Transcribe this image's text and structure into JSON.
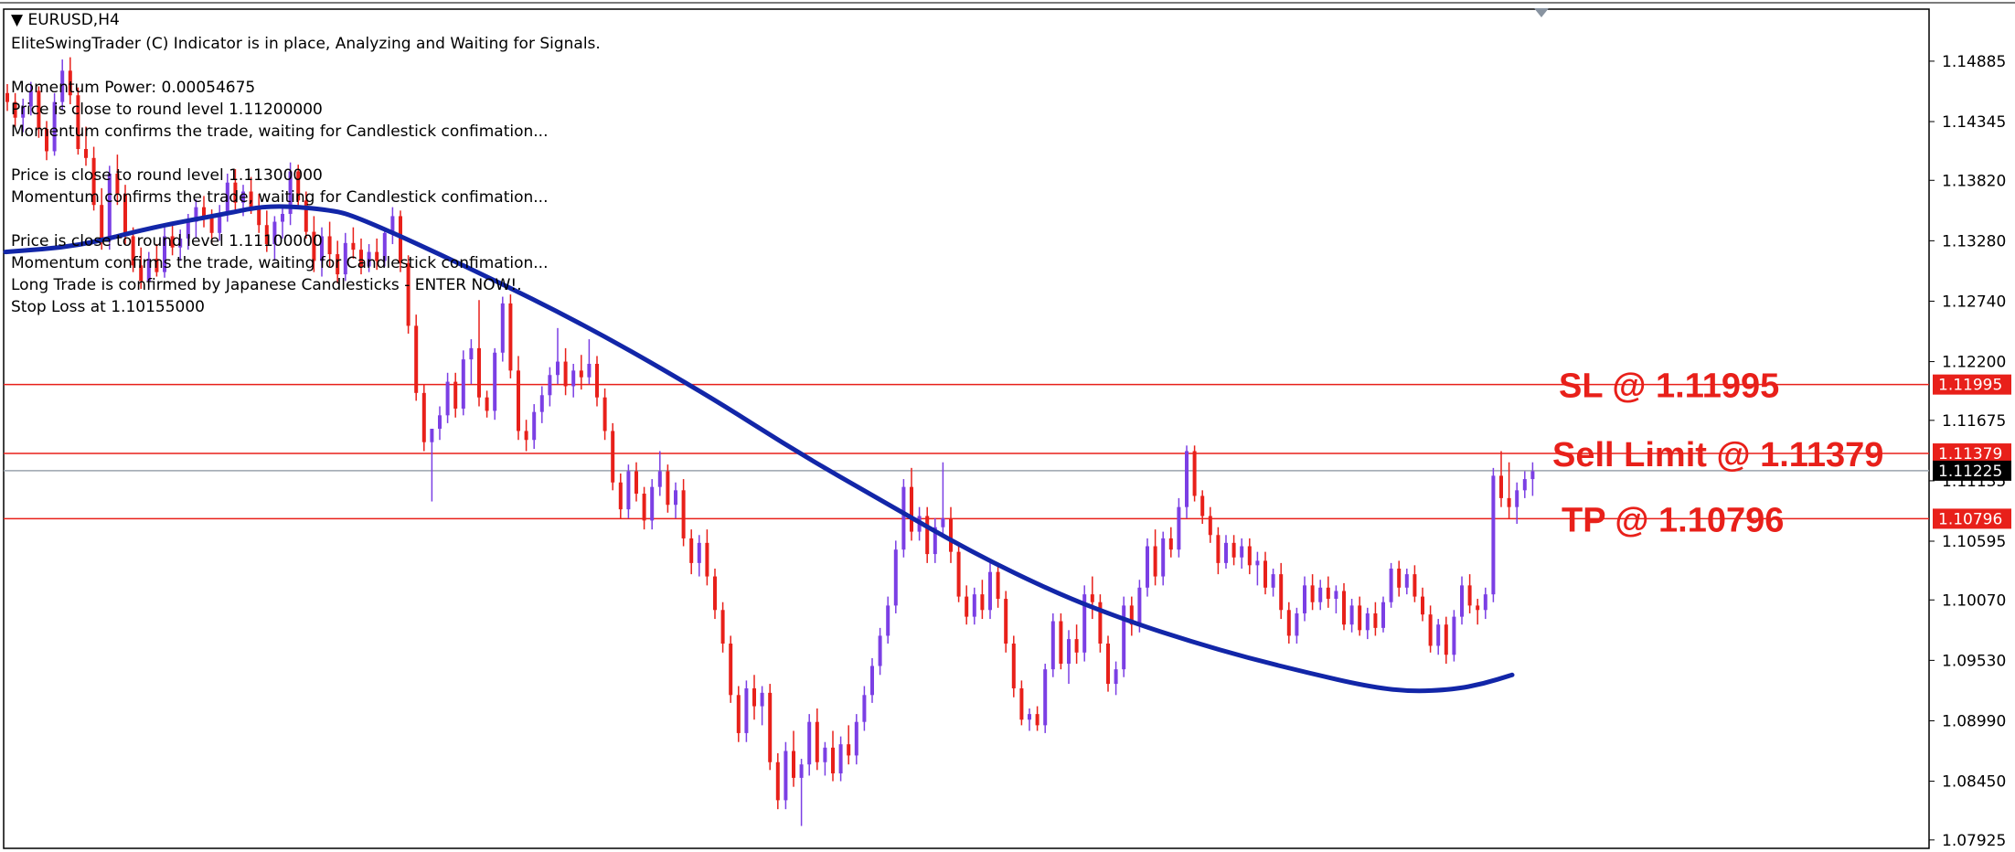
{
  "window": {
    "symbol_label": "EURUSD,H4"
  },
  "info_panel": {
    "lines": [
      "EliteSwingTrader (C) Indicator is in place, Analyzing and Waiting for Signals.",
      "",
      "Momentum Power: 0.00054675",
      "Price is close to round level 1.11200000",
      "Momentum confirms the trade, waiting for Candlestick confimation...",
      "",
      "Price is close to round level 1.11300000",
      "Momentum confirms the trade, waiting for Candlestick confimation...",
      "",
      "Price is close to round level 1.11100000",
      "Momentum confirms the trade, waiting for Candlestick confimation...",
      "Long Trade is confirmed by Japanese Candlesticks - ENTER NOW!.",
      "Stop Loss at 1.10155000"
    ]
  },
  "colors": {
    "bull": "#7B3FE4",
    "bear": "#E8201A",
    "ma": "#1226A8",
    "level_line": "#E8201A",
    "price_line": "#9AA3AD",
    "annotation": "#E8201A",
    "price_tag_bg": "#E8201A",
    "current_tag_bg": "#000000"
  },
  "chart_data": {
    "type": "candlestick",
    "symbol": "EURUSD",
    "timeframe": "H4",
    "ylim": [
      1.0785,
      1.1535
    ],
    "y_ticks": [
      "1.14885",
      "1.14345",
      "1.13820",
      "1.13280",
      "1.12740",
      "1.12200",
      "1.11675",
      "1.11135",
      "1.10595",
      "1.10070",
      "1.09530",
      "1.08990",
      "1.08450",
      "1.07925"
    ],
    "levels": [
      {
        "name": "SL",
        "price": 1.11995,
        "tag": "1.11995",
        "annotation": "SL @ 1.11995"
      },
      {
        "name": "Sell Limit",
        "price": 1.11379,
        "tag": "1.11379",
        "annotation": "Sell Limit @ 1.11379"
      },
      {
        "name": "TP",
        "price": 1.10796,
        "tag": "1.10796",
        "annotation": "TP @ 1.10796"
      }
    ],
    "current_price": {
      "price": 1.11225,
      "tag": "1.11225"
    },
    "candles": [
      [
        1.146,
        1.1468,
        1.1444,
        1.1452
      ],
      [
        1.1452,
        1.146,
        1.143,
        1.1438
      ],
      [
        1.1438,
        1.1455,
        1.1425,
        1.1448
      ],
      [
        1.1448,
        1.147,
        1.144,
        1.1462
      ],
      [
        1.1462,
        1.1466,
        1.142,
        1.1428
      ],
      [
        1.1428,
        1.1435,
        1.14,
        1.1408
      ],
      [
        1.1408,
        1.146,
        1.1404,
        1.1452
      ],
      [
        1.1452,
        1.149,
        1.1445,
        1.148
      ],
      [
        1.148,
        1.1492,
        1.145,
        1.1458
      ],
      [
        1.1458,
        1.1465,
        1.1405,
        1.141
      ],
      [
        1.141,
        1.143,
        1.1395,
        1.1402
      ],
      [
        1.1402,
        1.1412,
        1.1355,
        1.136
      ],
      [
        1.136,
        1.1375,
        1.132,
        1.1328
      ],
      [
        1.1328,
        1.1395,
        1.132,
        1.1388
      ],
      [
        1.1388,
        1.1405,
        1.136,
        1.137
      ],
      [
        1.137,
        1.1378,
        1.1325,
        1.1332
      ],
      [
        1.1332,
        1.134,
        1.13,
        1.1306
      ],
      [
        1.1306,
        1.1322,
        1.1285,
        1.1292
      ],
      [
        1.1292,
        1.1318,
        1.1286,
        1.1312
      ],
      [
        1.1312,
        1.1325,
        1.1296,
        1.13
      ],
      [
        1.13,
        1.134,
        1.1295,
        1.1332
      ],
      [
        1.1332,
        1.1345,
        1.1315,
        1.1322
      ],
      [
        1.1322,
        1.1338,
        1.131,
        1.133
      ],
      [
        1.133,
        1.1352,
        1.132,
        1.1345
      ],
      [
        1.1345,
        1.1365,
        1.133,
        1.1358
      ],
      [
        1.1358,
        1.1368,
        1.134,
        1.135
      ],
      [
        1.135,
        1.1356,
        1.1325,
        1.1335
      ],
      [
        1.1335,
        1.136,
        1.1328,
        1.1352
      ],
      [
        1.1352,
        1.1388,
        1.1345,
        1.138
      ],
      [
        1.138,
        1.1392,
        1.1355,
        1.1362
      ],
      [
        1.1362,
        1.1378,
        1.135,
        1.1372
      ],
      [
        1.1372,
        1.1385,
        1.1352,
        1.1358
      ],
      [
        1.1358,
        1.137,
        1.1335,
        1.1342
      ],
      [
        1.1342,
        1.1355,
        1.1318,
        1.1325
      ],
      [
        1.1325,
        1.135,
        1.131,
        1.1345
      ],
      [
        1.1345,
        1.136,
        1.133,
        1.1352
      ],
      [
        1.1352,
        1.1398,
        1.1342,
        1.139
      ],
      [
        1.139,
        1.1396,
        1.1358,
        1.1364
      ],
      [
        1.1364,
        1.1372,
        1.133,
        1.1336
      ],
      [
        1.1336,
        1.135,
        1.13,
        1.131
      ],
      [
        1.131,
        1.134,
        1.1296,
        1.1332
      ],
      [
        1.1332,
        1.1345,
        1.1305,
        1.1316
      ],
      [
        1.1316,
        1.1328,
        1.129,
        1.1298
      ],
      [
        1.1298,
        1.1335,
        1.1292,
        1.1326
      ],
      [
        1.1326,
        1.134,
        1.1312,
        1.132
      ],
      [
        1.132,
        1.133,
        1.1298,
        1.1305
      ],
      [
        1.1305,
        1.1325,
        1.13,
        1.1318
      ],
      [
        1.1318,
        1.133,
        1.1302,
        1.131
      ],
      [
        1.131,
        1.134,
        1.1305,
        1.1335
      ],
      [
        1.1335,
        1.1358,
        1.1325,
        1.135
      ],
      [
        1.135,
        1.1355,
        1.13,
        1.1308
      ],
      [
        1.1308,
        1.1315,
        1.1245,
        1.1252
      ],
      [
        1.1252,
        1.1262,
        1.1185,
        1.1192
      ],
      [
        1.1192,
        1.12,
        1.114,
        1.1148
      ],
      [
        1.1148,
        1.1155,
        1.1095,
        1.116
      ],
      [
        1.116,
        1.118,
        1.115,
        1.1172
      ],
      [
        1.1172,
        1.121,
        1.1165,
        1.1202
      ],
      [
        1.1202,
        1.121,
        1.117,
        1.1178
      ],
      [
        1.1178,
        1.123,
        1.1172,
        1.1222
      ],
      [
        1.1222,
        1.124,
        1.12,
        1.1232
      ],
      [
        1.1232,
        1.1275,
        1.118,
        1.1188
      ],
      [
        1.1188,
        1.1194,
        1.117,
        1.1176
      ],
      [
        1.1176,
        1.1232,
        1.1168,
        1.1228
      ],
      [
        1.1228,
        1.1278,
        1.122,
        1.1272
      ],
      [
        1.1272,
        1.128,
        1.1205,
        1.1212
      ],
      [
        1.1212,
        1.1225,
        1.115,
        1.1158
      ],
      [
        1.1158,
        1.1168,
        1.114,
        1.115
      ],
      [
        1.115,
        1.1182,
        1.1142,
        1.1175
      ],
      [
        1.1175,
        1.1198,
        1.1165,
        1.119
      ],
      [
        1.119,
        1.1215,
        1.118,
        1.1208
      ],
      [
        1.1208,
        1.125,
        1.12,
        1.122
      ],
      [
        1.122,
        1.1232,
        1.119,
        1.1198
      ],
      [
        1.1198,
        1.1218,
        1.1188,
        1.1212
      ],
      [
        1.1212,
        1.1226,
        1.1195,
        1.1206
      ],
      [
        1.1206,
        1.124,
        1.12,
        1.1218
      ],
      [
        1.1218,
        1.1225,
        1.118,
        1.1188
      ],
      [
        1.1188,
        1.1196,
        1.115,
        1.1158
      ],
      [
        1.1158,
        1.1165,
        1.1105,
        1.1112
      ],
      [
        1.1112,
        1.112,
        1.108,
        1.1088
      ],
      [
        1.1088,
        1.1128,
        1.108,
        1.1122
      ],
      [
        1.1122,
        1.113,
        1.1095,
        1.1102
      ],
      [
        1.1102,
        1.1108,
        1.107,
        1.1078
      ],
      [
        1.1078,
        1.1115,
        1.107,
        1.1108
      ],
      [
        1.1108,
        1.114,
        1.11,
        1.1122
      ],
      [
        1.1122,
        1.1128,
        1.1085,
        1.1092
      ],
      [
        1.1092,
        1.1112,
        1.108,
        1.1105
      ],
      [
        1.1105,
        1.1115,
        1.1055,
        1.1062
      ],
      [
        1.1062,
        1.107,
        1.103,
        1.104
      ],
      [
        1.104,
        1.1065,
        1.1028,
        1.1058
      ],
      [
        1.1058,
        1.107,
        1.102,
        1.1028
      ],
      [
        1.1028,
        1.1035,
        1.099,
        1.0998
      ],
      [
        1.0998,
        1.1005,
        1.096,
        1.0968
      ],
      [
        1.0968,
        1.0975,
        1.0915,
        1.0922
      ],
      [
        1.0922,
        1.093,
        1.088,
        1.0888
      ],
      [
        1.0888,
        1.0935,
        1.088,
        1.0928
      ],
      [
        1.0928,
        1.094,
        1.09,
        1.0912
      ],
      [
        1.0912,
        1.093,
        1.0895,
        1.0924
      ],
      [
        1.0924,
        1.0932,
        1.0855,
        1.0862
      ],
      [
        1.0862,
        1.087,
        1.082,
        1.0828
      ],
      [
        1.0828,
        1.088,
        1.082,
        1.0872
      ],
      [
        1.0872,
        1.089,
        1.084,
        1.0848
      ],
      [
        1.0848,
        1.0865,
        1.0805,
        1.086
      ],
      [
        1.086,
        1.0905,
        1.085,
        1.0898
      ],
      [
        1.0898,
        1.091,
        1.0855,
        1.0862
      ],
      [
        1.0862,
        1.088,
        1.085,
        1.0875
      ],
      [
        1.0875,
        1.089,
        1.0845,
        1.0852
      ],
      [
        1.0852,
        1.0885,
        1.0845,
        1.0878
      ],
      [
        1.0878,
        1.0895,
        1.086,
        1.0868
      ],
      [
        1.0868,
        1.0905,
        1.086,
        1.0898
      ],
      [
        1.0898,
        1.093,
        1.089,
        1.0922
      ],
      [
        1.0922,
        1.0955,
        1.0915,
        1.0948
      ],
      [
        1.0948,
        1.0982,
        1.094,
        1.0975
      ],
      [
        1.0975,
        1.101,
        1.0968,
        1.1002
      ],
      [
        1.1002,
        1.106,
        1.0995,
        1.1052
      ],
      [
        1.1052,
        1.1115,
        1.1045,
        1.1108
      ],
      [
        1.1108,
        1.1125,
        1.106,
        1.1068
      ],
      [
        1.1068,
        1.109,
        1.106,
        1.1082
      ],
      [
        1.1082,
        1.109,
        1.104,
        1.1048
      ],
      [
        1.1048,
        1.108,
        1.104,
        1.1072
      ],
      [
        1.1072,
        1.113,
        1.1065,
        1.108
      ],
      [
        1.108,
        1.109,
        1.104,
        1.105
      ],
      [
        1.105,
        1.1058,
        1.1005,
        1.101
      ],
      [
        1.101,
        1.102,
        1.0985,
        1.0992
      ],
      [
        1.0992,
        1.1018,
        1.0985,
        1.1012
      ],
      [
        1.1012,
        1.1025,
        1.099,
        1.0998
      ],
      [
        1.0998,
        1.104,
        1.099,
        1.1032
      ],
      [
        1.1032,
        1.104,
        1.1,
        1.1008
      ],
      [
        1.1008,
        1.1015,
        1.096,
        1.0968
      ],
      [
        1.0968,
        1.0975,
        1.092,
        1.0928
      ],
      [
        1.0928,
        1.0935,
        1.0895,
        1.09
      ],
      [
        1.09,
        1.091,
        1.089,
        1.0905
      ],
      [
        1.0905,
        1.0912,
        1.089,
        1.0895
      ],
      [
        1.0895,
        1.095,
        1.0888,
        1.0945
      ],
      [
        1.0945,
        1.0995,
        1.0938,
        1.0988
      ],
      [
        1.0988,
        1.0995,
        1.0945,
        1.095
      ],
      [
        1.095,
        1.098,
        1.0932,
        1.0972
      ],
      [
        1.0972,
        1.0985,
        1.095,
        1.096
      ],
      [
        1.096,
        1.102,
        1.0952,
        1.1012
      ],
      [
        1.1012,
        1.1028,
        1.099,
        1.1005
      ],
      [
        1.1005,
        1.1012,
        1.096,
        1.0968
      ],
      [
        1.0968,
        1.0975,
        1.0925,
        1.0932
      ],
      [
        1.0932,
        1.0952,
        1.0922,
        1.0945
      ],
      [
        1.0945,
        1.101,
        1.0938,
        1.1002
      ],
      [
        1.1002,
        1.101,
        1.0975,
        1.0985
      ],
      [
        1.0985,
        1.1025,
        1.0978,
        1.1018
      ],
      [
        1.1018,
        1.1062,
        1.101,
        1.1055
      ],
      [
        1.1055,
        1.107,
        1.102,
        1.1028
      ],
      [
        1.1028,
        1.1068,
        1.102,
        1.1062
      ],
      [
        1.1062,
        1.1072,
        1.1045,
        1.1052
      ],
      [
        1.1052,
        1.1098,
        1.1045,
        1.109
      ],
      [
        1.109,
        1.1145,
        1.108,
        1.114
      ],
      [
        1.114,
        1.1145,
        1.1095,
        1.11
      ],
      [
        1.11,
        1.1105,
        1.1075,
        1.1082
      ],
      [
        1.1082,
        1.109,
        1.1058,
        1.1065
      ],
      [
        1.1065,
        1.1072,
        1.103,
        1.104
      ],
      [
        1.104,
        1.1065,
        1.1035,
        1.1058
      ],
      [
        1.1058,
        1.1065,
        1.1038,
        1.1045
      ],
      [
        1.1045,
        1.1062,
        1.1035,
        1.1055
      ],
      [
        1.1055,
        1.1062,
        1.103,
        1.1038
      ],
      [
        1.1038,
        1.105,
        1.102,
        1.1042
      ],
      [
        1.1042,
        1.105,
        1.1012,
        1.1018
      ],
      [
        1.1018,
        1.1035,
        1.101,
        1.103
      ],
      [
        1.103,
        1.104,
        1.099,
        1.0998
      ],
      [
        1.0998,
        1.1005,
        1.0968,
        1.0975
      ],
      [
        1.0975,
        1.1,
        1.0968,
        1.0995
      ],
      [
        1.0995,
        1.1028,
        1.0988,
        1.102
      ],
      [
        1.102,
        1.103,
        1.0998,
        1.1005
      ],
      [
        1.1005,
        1.1025,
        1.0998,
        1.1018
      ],
      [
        1.1018,
        1.1028,
        1.1,
        1.1008
      ],
      [
        1.1008,
        1.102,
        1.0995,
        1.1015
      ],
      [
        1.1015,
        1.1022,
        1.098,
        1.0985
      ],
      [
        1.0985,
        1.1008,
        1.0978,
        1.1002
      ],
      [
        1.1002,
        1.101,
        1.0975,
        1.098
      ],
      [
        1.098,
        1.1,
        1.0972,
        1.0995
      ],
      [
        1.0995,
        1.1005,
        1.0975,
        1.0982
      ],
      [
        1.0982,
        1.101,
        1.0978,
        1.1005
      ],
      [
        1.1005,
        1.104,
        1.1,
        1.1035
      ],
      [
        1.1035,
        1.1042,
        1.101,
        1.1018
      ],
      [
        1.1018,
        1.1035,
        1.1012,
        1.103
      ],
      [
        1.103,
        1.1038,
        1.1005,
        1.101
      ],
      [
        1.101,
        1.1018,
        1.0988,
        1.0994
      ],
      [
        1.0994,
        1.1002,
        1.096,
        1.0966
      ],
      [
        1.0966,
        1.099,
        1.0958,
        1.0985
      ],
      [
        1.0985,
        1.0992,
        1.095,
        1.0958
      ],
      [
        1.0958,
        1.0998,
        1.0952,
        1.0992
      ],
      [
        1.0992,
        1.1028,
        1.0985,
        1.102
      ],
      [
        1.102,
        1.103,
        1.0995,
        1.1002
      ],
      [
        1.1002,
        1.1008,
        1.0985,
        1.0998
      ],
      [
        1.0998,
        1.1018,
        1.099,
        1.1012
      ],
      [
        1.1012,
        1.1125,
        1.1005,
        1.1118
      ],
      [
        1.1118,
        1.114,
        1.109,
        1.1098
      ],
      [
        1.1098,
        1.113,
        1.108,
        1.109
      ],
      [
        1.109,
        1.1112,
        1.1075,
        1.1105
      ],
      [
        1.1105,
        1.1122,
        1.1098,
        1.1115
      ],
      [
        1.1115,
        1.113,
        1.11,
        1.1122
      ]
    ],
    "ma": [
      [
        0,
        1.1318
      ],
      [
        25,
        1.1323
      ],
      [
        50,
        1.134
      ],
      [
        75,
        1.1352
      ],
      [
        90,
        1.136
      ],
      [
        110,
        1.1356
      ],
      [
        120,
        1.135
      ],
      [
        160,
        1.1302
      ],
      [
        200,
        1.125
      ],
      [
        240,
        1.119
      ],
      [
        270,
        1.114
      ],
      [
        300,
        1.1095
      ],
      [
        330,
        1.105
      ],
      [
        360,
        1.1012
      ],
      [
        385,
        1.0987
      ],
      [
        405,
        1.097
      ],
      [
        425,
        1.0955
      ],
      [
        445,
        1.0942
      ],
      [
        465,
        1.093
      ],
      [
        480,
        1.0925
      ],
      [
        495,
        1.0927
      ],
      [
        505,
        1.0932
      ],
      [
        515,
        1.094
      ]
    ]
  }
}
